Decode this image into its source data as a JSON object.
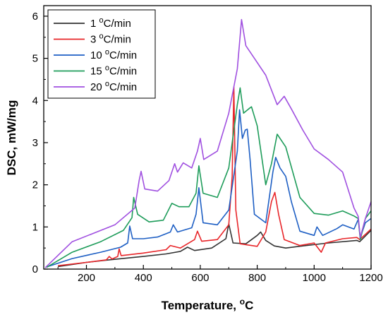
{
  "chart_data": {
    "type": "line",
    "xlabel": "Temperature, ",
    "xlabel_unit": "C",
    "ylabel": "DSC, mW/mg",
    "xlim": [
      50,
      1200
    ],
    "ylim": [
      0,
      6.25
    ],
    "xticks": [
      200,
      400,
      600,
      800,
      1000,
      1200
    ],
    "yticks": [
      0,
      1,
      2,
      3,
      4,
      5,
      6
    ],
    "grid": false,
    "legend_position": "top-left",
    "series": [
      {
        "name_prefix": "1 ",
        "name_unit": "C/min",
        "color": "#333333",
        "points": [
          [
            100,
            0.06
          ],
          [
            200,
            0.16
          ],
          [
            280,
            0.22
          ],
          [
            400,
            0.3
          ],
          [
            480,
            0.36
          ],
          [
            530,
            0.42
          ],
          [
            555,
            0.52
          ],
          [
            580,
            0.44
          ],
          [
            640,
            0.5
          ],
          [
            690,
            0.72
          ],
          [
            700,
            1.07
          ],
          [
            715,
            0.62
          ],
          [
            760,
            0.6
          ],
          [
            800,
            0.8
          ],
          [
            812,
            0.88
          ],
          [
            830,
            0.68
          ],
          [
            860,
            0.55
          ],
          [
            900,
            0.5
          ],
          [
            960,
            0.55
          ],
          [
            1050,
            0.62
          ],
          [
            1150,
            0.68
          ],
          [
            1160,
            0.65
          ],
          [
            1200,
            0.92
          ]
        ]
      },
      {
        "name_prefix": "3 ",
        "name_unit": "C/min",
        "color": "#e8262a",
        "points": [
          [
            100,
            0.08
          ],
          [
            200,
            0.16
          ],
          [
            270,
            0.22
          ],
          [
            280,
            0.3
          ],
          [
            290,
            0.24
          ],
          [
            310,
            0.3
          ],
          [
            315,
            0.48
          ],
          [
            322,
            0.32
          ],
          [
            400,
            0.38
          ],
          [
            480,
            0.46
          ],
          [
            495,
            0.56
          ],
          [
            530,
            0.5
          ],
          [
            580,
            0.7
          ],
          [
            590,
            0.9
          ],
          [
            605,
            0.66
          ],
          [
            660,
            0.7
          ],
          [
            700,
            1.05
          ],
          [
            712,
            2.2
          ],
          [
            718,
            4.32
          ],
          [
            725,
            1.4
          ],
          [
            740,
            0.6
          ],
          [
            800,
            0.54
          ],
          [
            830,
            0.88
          ],
          [
            850,
            1.6
          ],
          [
            862,
            1.82
          ],
          [
            875,
            1.3
          ],
          [
            895,
            0.7
          ],
          [
            950,
            0.56
          ],
          [
            1000,
            0.62
          ],
          [
            1025,
            0.4
          ],
          [
            1040,
            0.62
          ],
          [
            1100,
            0.72
          ],
          [
            1150,
            0.75
          ],
          [
            1160,
            0.7
          ],
          [
            1200,
            0.95
          ]
        ]
      },
      {
        "name_prefix": "10 ",
        "name_unit": "C/min",
        "color": "#1e5fc4",
        "points": [
          [
            60,
            0.05
          ],
          [
            150,
            0.25
          ],
          [
            250,
            0.4
          ],
          [
            320,
            0.52
          ],
          [
            345,
            0.62
          ],
          [
            352,
            1.02
          ],
          [
            362,
            0.72
          ],
          [
            400,
            0.72
          ],
          [
            450,
            0.76
          ],
          [
            495,
            0.88
          ],
          [
            505,
            1.05
          ],
          [
            520,
            0.88
          ],
          [
            570,
            0.98
          ],
          [
            585,
            1.3
          ],
          [
            595,
            1.93
          ],
          [
            610,
            1.1
          ],
          [
            660,
            1.05
          ],
          [
            700,
            1.4
          ],
          [
            730,
            2.8
          ],
          [
            738,
            3.78
          ],
          [
            748,
            3.1
          ],
          [
            758,
            3.3
          ],
          [
            765,
            3.32
          ],
          [
            775,
            2.6
          ],
          [
            790,
            1.3
          ],
          [
            830,
            1.1
          ],
          [
            855,
            2.3
          ],
          [
            865,
            2.65
          ],
          [
            880,
            2.4
          ],
          [
            900,
            2.2
          ],
          [
            920,
            1.6
          ],
          [
            950,
            0.9
          ],
          [
            1000,
            0.8
          ],
          [
            1010,
            1.0
          ],
          [
            1030,
            0.8
          ],
          [
            1080,
            0.96
          ],
          [
            1100,
            1.05
          ],
          [
            1140,
            0.95
          ],
          [
            1155,
            1.18
          ],
          [
            1162,
            0.75
          ],
          [
            1180,
            1.1
          ],
          [
            1200,
            1.2
          ]
        ]
      },
      {
        "name_prefix": "15 ",
        "name_unit": "C/min",
        "color": "#1e9c5a",
        "points": [
          [
            60,
            0.04
          ],
          [
            150,
            0.4
          ],
          [
            250,
            0.65
          ],
          [
            330,
            0.92
          ],
          [
            360,
            1.22
          ],
          [
            366,
            1.7
          ],
          [
            380,
            1.3
          ],
          [
            420,
            1.12
          ],
          [
            470,
            1.16
          ],
          [
            500,
            1.56
          ],
          [
            525,
            1.48
          ],
          [
            560,
            1.48
          ],
          [
            585,
            1.8
          ],
          [
            595,
            2.45
          ],
          [
            610,
            1.8
          ],
          [
            660,
            1.7
          ],
          [
            700,
            2.4
          ],
          [
            730,
            3.9
          ],
          [
            740,
            4.3
          ],
          [
            752,
            3.7
          ],
          [
            770,
            3.8
          ],
          [
            780,
            3.85
          ],
          [
            800,
            3.4
          ],
          [
            830,
            2.0
          ],
          [
            850,
            2.5
          ],
          [
            870,
            3.2
          ],
          [
            900,
            2.9
          ],
          [
            950,
            1.7
          ],
          [
            1000,
            1.32
          ],
          [
            1050,
            1.28
          ],
          [
            1100,
            1.38
          ],
          [
            1140,
            1.26
          ],
          [
            1155,
            1.2
          ],
          [
            1162,
            0.7
          ],
          [
            1180,
            1.2
          ],
          [
            1200,
            1.38
          ]
        ]
      },
      {
        "name_prefix": "20 ",
        "name_unit": "C/min",
        "color": "#a050e0",
        "points": [
          [
            55,
            0.03
          ],
          [
            150,
            0.65
          ],
          [
            300,
            1.05
          ],
          [
            370,
            1.45
          ],
          [
            385,
            2.1
          ],
          [
            392,
            2.32
          ],
          [
            405,
            1.9
          ],
          [
            450,
            1.85
          ],
          [
            490,
            2.1
          ],
          [
            510,
            2.5
          ],
          [
            520,
            2.3
          ],
          [
            540,
            2.52
          ],
          [
            570,
            2.4
          ],
          [
            590,
            2.8
          ],
          [
            600,
            3.1
          ],
          [
            612,
            2.6
          ],
          [
            660,
            2.8
          ],
          [
            700,
            3.7
          ],
          [
            730,
            4.75
          ],
          [
            745,
            5.92
          ],
          [
            760,
            5.3
          ],
          [
            790,
            5.0
          ],
          [
            830,
            4.6
          ],
          [
            870,
            3.9
          ],
          [
            895,
            4.1
          ],
          [
            920,
            3.8
          ],
          [
            960,
            3.3
          ],
          [
            1000,
            2.85
          ],
          [
            1050,
            2.6
          ],
          [
            1100,
            2.3
          ],
          [
            1140,
            1.45
          ],
          [
            1155,
            1.25
          ],
          [
            1162,
            0.75
          ],
          [
            1180,
            1.2
          ],
          [
            1200,
            1.6
          ]
        ]
      }
    ]
  }
}
